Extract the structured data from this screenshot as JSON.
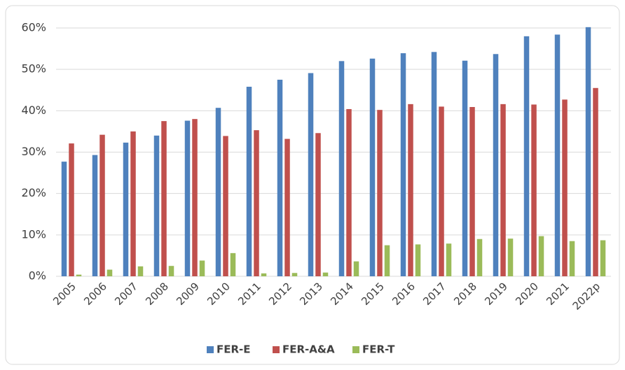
{
  "chart_data": {
    "type": "bar",
    "categories": [
      "2005",
      "2006",
      "2007",
      "2008",
      "2009",
      "2010",
      "2011",
      "2012",
      "2013",
      "2014",
      "2015",
      "2016",
      "2017",
      "2018",
      "2019",
      "2020",
      "2021",
      "2022p"
    ],
    "series": [
      {
        "name": "FER-E",
        "color": "#4f81bd",
        "values": [
          27.7,
          29.3,
          32.3,
          34.0,
          37.6,
          40.7,
          45.8,
          47.5,
          49.1,
          52.0,
          52.6,
          53.9,
          54.2,
          52.1,
          53.7,
          58.0,
          58.4,
          60.2
        ]
      },
      {
        "name": "FER-A&A",
        "color": "#c0504d",
        "values": [
          32.1,
          34.2,
          35.0,
          37.5,
          38.0,
          33.9,
          35.3,
          33.2,
          34.6,
          40.4,
          40.2,
          41.6,
          41.0,
          40.9,
          41.6,
          41.5,
          42.7,
          45.5
        ]
      },
      {
        "name": "FER-T",
        "color": "#9bbb59",
        "values": [
          0.4,
          1.6,
          2.4,
          2.5,
          3.8,
          5.6,
          0.7,
          0.8,
          0.9,
          3.6,
          7.5,
          7.7,
          7.9,
          9.0,
          9.1,
          9.7,
          8.5,
          8.7
        ]
      }
    ],
    "ylim": [
      0,
      60
    ],
    "yticks": [
      {
        "value": 0,
        "label": "0%"
      },
      {
        "value": 10,
        "label": "10%"
      },
      {
        "value": 20,
        "label": "20%"
      },
      {
        "value": 30,
        "label": "30%"
      },
      {
        "value": 40,
        "label": "40%"
      },
      {
        "value": 50,
        "label": "50%"
      },
      {
        "value": 60,
        "label": "60%"
      }
    ],
    "grid": true,
    "legend": "bottom"
  }
}
